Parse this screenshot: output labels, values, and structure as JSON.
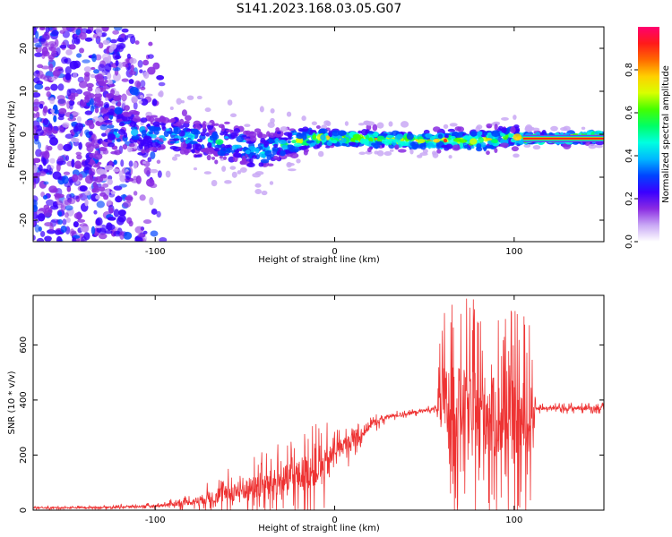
{
  "figure_title": "S141.2023.168.03.05.G07",
  "chart_data": [
    {
      "type": "heatmap",
      "xlabel": "Height of straight line (km)",
      "ylabel": "Frequency (Hz)",
      "xlim": [
        -168,
        150
      ],
      "ylim": [
        -25,
        25
      ],
      "x_ticks": [
        "-100",
        "0",
        "100"
      ],
      "y_ticks": [
        "-20",
        "-10",
        "0",
        "10",
        "20"
      ],
      "colorbar": {
        "label": "Normalized spectral amplitude",
        "range": [
          0,
          1
        ],
        "ticks": [
          "0.0",
          "0.2",
          "0.4",
          "0.6",
          "0.8"
        ],
        "colors": [
          "#ffffff",
          "#c9a8f5",
          "#8a2be2",
          "#3a00ff",
          "#0044ff",
          "#00b8ff",
          "#00ffe0",
          "#00ff66",
          "#44ff00",
          "#d8ff00",
          "#ffd000",
          "#ff6a00",
          "#ff1a1a",
          "#ff0070"
        ]
      },
      "ridge": [
        {
          "x": -168,
          "y": 0,
          "amp": 0.2,
          "spread": 20
        },
        {
          "x": -130,
          "y": 0,
          "amp": 0.3,
          "spread": 15
        },
        {
          "x": -115,
          "y": 1,
          "amp": 0.35,
          "spread": 5
        },
        {
          "x": -100,
          "y": 0,
          "amp": 0.4,
          "spread": 4
        },
        {
          "x": -80,
          "y": -1,
          "amp": 0.45,
          "spread": 4
        },
        {
          "x": -60,
          "y": -2,
          "amp": 0.45,
          "spread": 4
        },
        {
          "x": -40,
          "y": -4,
          "amp": 0.45,
          "spread": 4
        },
        {
          "x": -25,
          "y": -2,
          "amp": 0.5,
          "spread": 3
        },
        {
          "x": -15,
          "y": -1,
          "amp": 0.75,
          "spread": 2
        },
        {
          "x": 0,
          "y": -1,
          "amp": 0.7,
          "spread": 1.5
        },
        {
          "x": 20,
          "y": -1,
          "amp": 0.8,
          "spread": 1.5
        },
        {
          "x": 45,
          "y": -1.5,
          "amp": 0.75,
          "spread": 1.5
        },
        {
          "x": 60,
          "y": -1.5,
          "amp": 0.8,
          "spread": 1.5
        },
        {
          "x": 80,
          "y": -1.5,
          "amp": 0.7,
          "spread": 2
        },
        {
          "x": 100,
          "y": -0.5,
          "amp": 0.6,
          "spread": 2
        },
        {
          "x": 105,
          "y": -1,
          "amp": 0.9,
          "spread": 1
        },
        {
          "x": 130,
          "y": -1,
          "amp": 0.95,
          "spread": 1
        },
        {
          "x": 150,
          "y": -0.5,
          "amp": 0.9,
          "spread": 1
        }
      ]
    },
    {
      "type": "line",
      "xlabel": "Height of straight line (km)",
      "ylabel": "SNR (10 * v/v)",
      "xlim": [
        -168,
        150
      ],
      "ylim": [
        0,
        780
      ],
      "x_ticks": [
        "-100",
        "0",
        "100"
      ],
      "y_ticks": [
        "0",
        "200",
        "400",
        "600"
      ],
      "series_color": "#ee3333",
      "envelope": [
        {
          "x": -168,
          "base": 8,
          "noise": 6
        },
        {
          "x": -130,
          "base": 10,
          "noise": 8
        },
        {
          "x": -100,
          "base": 15,
          "noise": 12
        },
        {
          "x": -80,
          "base": 30,
          "noise": 30
        },
        {
          "x": -60,
          "base": 60,
          "noise": 90
        },
        {
          "x": -40,
          "base": 90,
          "noise": 130
        },
        {
          "x": -20,
          "base": 120,
          "noise": 170
        },
        {
          "x": -5,
          "base": 160,
          "noise": 170
        },
        {
          "x": 0,
          "base": 220,
          "noise": 80
        },
        {
          "x": 10,
          "base": 250,
          "noise": 90
        },
        {
          "x": 20,
          "base": 310,
          "noise": 40
        },
        {
          "x": 30,
          "base": 340,
          "noise": 20
        },
        {
          "x": 40,
          "base": 350,
          "noise": 15
        },
        {
          "x": 57,
          "base": 370,
          "noise": 20
        },
        {
          "x": 60,
          "base": 380,
          "noise": 420
        },
        {
          "x": 75,
          "base": 370,
          "noise": 400
        },
        {
          "x": 90,
          "base": 330,
          "noise": 430
        },
        {
          "x": 108,
          "base": 320,
          "noise": 420
        },
        {
          "x": 112,
          "base": 370,
          "noise": 20
        },
        {
          "x": 150,
          "base": 370,
          "noise": 20
        }
      ]
    }
  ]
}
